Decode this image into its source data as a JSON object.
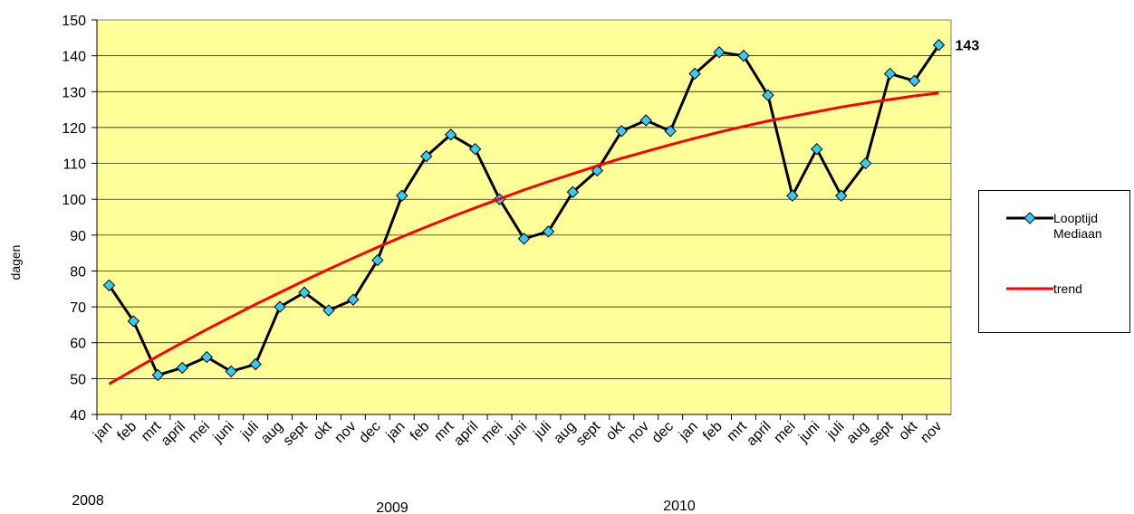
{
  "chart_data": {
    "type": "line",
    "y_label": "dagen",
    "categories": [
      "jan",
      "feb",
      "mrt",
      "april",
      "mei",
      "juni",
      "juli",
      "aug",
      "sept",
      "okt",
      "nov",
      "dec",
      "jan",
      "feb",
      "mrt",
      "april",
      "mei",
      "juni",
      "juli",
      "aug",
      "sept",
      "okt",
      "nov",
      "dec",
      "jan",
      "feb",
      "mrt",
      "april",
      "mei",
      "juni",
      "juli",
      "aug",
      "sept",
      "okt",
      "nov"
    ],
    "year_labels": [
      "2008",
      "2009",
      "2010"
    ],
    "series": [
      {
        "name": "Looptijd Mediaan",
        "color": "#000000",
        "marker_color": "#33ccff",
        "values": [
          76,
          66,
          51,
          53,
          56,
          52,
          54,
          70,
          74,
          69,
          72,
          83,
          101,
          112,
          118,
          114,
          100,
          89,
          91,
          102,
          108,
          119,
          122,
          119,
          135,
          141,
          140,
          129,
          101,
          114,
          101,
          110,
          135,
          133,
          143
        ],
        "value_labels": [
          null,
          null,
          null,
          null,
          null,
          null,
          null,
          null,
          null,
          null,
          null,
          null,
          null,
          null,
          null,
          null,
          null,
          null,
          null,
          null,
          null,
          null,
          null,
          null,
          null,
          null,
          null,
          null,
          null,
          null,
          null,
          null,
          null,
          null,
          "143"
        ]
      },
      {
        "name": "trend",
        "color": "#ff0000",
        "values": [
          48.5,
          52.4,
          56.3,
          60.0,
          63.7,
          67.2,
          70.7,
          74.0,
          77.3,
          80.5,
          83.6,
          86.6,
          89.5,
          92.3,
          95.0,
          97.6,
          100.1,
          102.6,
          104.9,
          107.1,
          109.3,
          111.4,
          113.3,
          115.2,
          117.0,
          118.7,
          120.3,
          121.8,
          123.1,
          124.4,
          125.7,
          126.8,
          127.8,
          128.8,
          129.6
        ]
      }
    ],
    "ylim": [
      40,
      150
    ],
    "yticks": [
      40,
      50,
      60,
      70,
      80,
      90,
      100,
      110,
      120,
      130,
      140,
      150
    ],
    "grid": true,
    "plot_background": "#ffff99",
    "legend": "right"
  }
}
